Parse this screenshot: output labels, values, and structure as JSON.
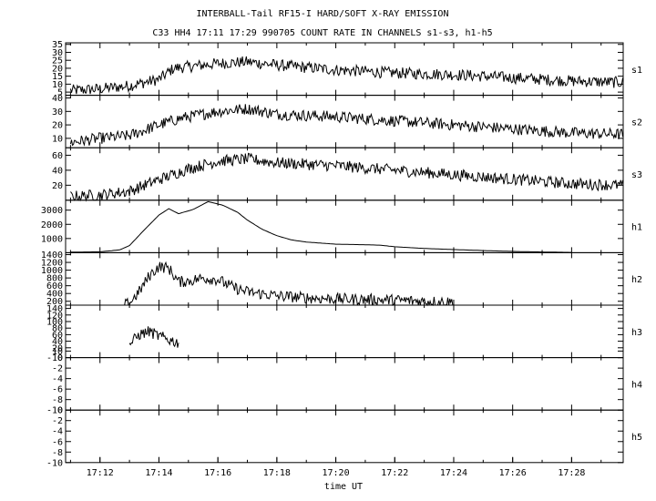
{
  "title": "INTERBALL-Tail RF15-I HARD/SOFT X-RAY EMISSION",
  "subtitle": "C33 HH4 17:11 17:29 990705  COUNT RATE IN CHANNELS s1-s3, h1-h5",
  "chart_data": {
    "type": "line",
    "title": "INTERBALL-Tail RF15-I HARD/SOFT X-RAY EMISSION",
    "subtitle": "C33 HH4 17:11 17:29 990705  COUNT RATE IN CHANNELS s1-s3, h1-h5",
    "xlabel": "time UT",
    "x_ticks": [
      "17:12",
      "17:14",
      "17:16",
      "17:18",
      "17:20",
      "17:22",
      "17:24",
      "17:26",
      "17:28"
    ],
    "xlim": [
      "17:10:50",
      "17:29:45"
    ],
    "grid": false,
    "legend": "none",
    "panels": [
      {
        "name": "s1",
        "ylim": [
          3,
          36
        ],
        "yticks": [
          5,
          10,
          15,
          20,
          25,
          30,
          35
        ],
        "noisy": true,
        "points": [
          [
            "17:11",
            6
          ],
          [
            "17:12",
            7
          ],
          [
            "17:13",
            9
          ],
          [
            "17:14",
            13
          ],
          [
            "17:14:30",
            20
          ],
          [
            "17:16",
            23
          ],
          [
            "17:17",
            24
          ],
          [
            "17:18",
            22
          ],
          [
            "17:20",
            19
          ],
          [
            "17:22",
            17
          ],
          [
            "17:24",
            16
          ],
          [
            "17:26",
            14
          ],
          [
            "17:28",
            12
          ],
          [
            "17:29:45",
            11
          ]
        ]
      },
      {
        "name": "s2",
        "ylim": [
          3,
          42
        ],
        "yticks": [
          10,
          20,
          30,
          40
        ],
        "noisy": true,
        "points": [
          [
            "17:11",
            7
          ],
          [
            "17:12",
            10
          ],
          [
            "17:13",
            12
          ],
          [
            "17:14",
            20
          ],
          [
            "17:14:45",
            25
          ],
          [
            "17:16",
            30
          ],
          [
            "17:17",
            32
          ],
          [
            "17:18",
            28
          ],
          [
            "17:20",
            26
          ],
          [
            "17:22",
            23
          ],
          [
            "17:24",
            20
          ],
          [
            "17:26",
            17
          ],
          [
            "17:28",
            14
          ],
          [
            "17:29:45",
            13
          ]
        ]
      },
      {
        "name": "s3",
        "ylim": [
          0,
          70
        ],
        "yticks": [
          20,
          40,
          60
        ],
        "noisy": true,
        "points": [
          [
            "17:11",
            5
          ],
          [
            "17:12",
            7
          ],
          [
            "17:13",
            12
          ],
          [
            "17:13:50",
            25
          ],
          [
            "17:15",
            42
          ],
          [
            "17:16",
            52
          ],
          [
            "17:17",
            55
          ],
          [
            "17:18",
            50
          ],
          [
            "17:20",
            46
          ],
          [
            "17:22",
            40
          ],
          [
            "17:24",
            34
          ],
          [
            "17:26",
            28
          ],
          [
            "17:28",
            22
          ],
          [
            "17:29:45",
            20
          ]
        ]
      },
      {
        "name": "h1",
        "ylim": [
          0,
          3700
        ],
        "yticks": [
          1000,
          2000,
          3000
        ],
        "noisy": false,
        "points": [
          [
            "17:11",
            40
          ],
          [
            "17:12",
            60
          ],
          [
            "17:12:40",
            200
          ],
          [
            "17:13",
            500
          ],
          [
            "17:13:30",
            1600
          ],
          [
            "17:14",
            2650
          ],
          [
            "17:14:20",
            3100
          ],
          [
            "17:14:40",
            2750
          ],
          [
            "17:15:10",
            3050
          ],
          [
            "17:15:40",
            3600
          ],
          [
            "17:16:10",
            3350
          ],
          [
            "17:16:40",
            2850
          ],
          [
            "17:17",
            2300
          ],
          [
            "17:17:30",
            1650
          ],
          [
            "17:18",
            1200
          ],
          [
            "17:18:30",
            900
          ],
          [
            "17:19",
            750
          ],
          [
            "17:20",
            600
          ],
          [
            "17:21",
            560
          ],
          [
            "17:21:30",
            530
          ],
          [
            "17:22",
            420
          ],
          [
            "17:23",
            300
          ],
          [
            "17:24",
            220
          ],
          [
            "17:25",
            150
          ],
          [
            "17:26",
            90
          ],
          [
            "17:27",
            50
          ],
          [
            "17:28",
            20
          ]
        ]
      },
      {
        "name": "h2",
        "ylim": [
          100,
          1450
        ],
        "yticks": [
          200,
          400,
          600,
          800,
          1000,
          1200,
          1400
        ],
        "noisy": true,
        "points": [
          [
            "17:12:50",
            100
          ],
          [
            "17:13",
            150
          ],
          [
            "17:13:20",
            450
          ],
          [
            "17:13:40",
            850
          ],
          [
            "17:14",
            1100
          ],
          [
            "17:14:20",
            1050
          ],
          [
            "17:14:40",
            700
          ],
          [
            "17:15",
            720
          ],
          [
            "17:15:30",
            800
          ],
          [
            "17:16",
            760
          ],
          [
            "17:16:30",
            560
          ],
          [
            "17:17",
            440
          ],
          [
            "17:18",
            340
          ],
          [
            "17:19",
            290
          ],
          [
            "17:20",
            260
          ],
          [
            "17:22",
            230
          ],
          [
            "17:23",
            200
          ],
          [
            "17:24",
            180
          ]
        ]
      },
      {
        "name": "h3",
        "ylim": [
          -10,
          150
        ],
        "yticks": [
          -10,
          10,
          20,
          40,
          60,
          80,
          100,
          120,
          140
        ],
        "noisy": true,
        "points": [
          [
            "17:13",
            30
          ],
          [
            "17:13:20",
            60
          ],
          [
            "17:13:40",
            70
          ],
          [
            "17:14",
            55
          ],
          [
            "17:14:20",
            45
          ],
          [
            "17:14:40",
            35
          ]
        ]
      },
      {
        "name": "h4",
        "ylim": [
          -10,
          0
        ],
        "yticks": [
          -10,
          -8,
          -6,
          -4,
          -2,
          0
        ],
        "noisy": false,
        "points": []
      },
      {
        "name": "h5",
        "ylim": [
          -10,
          0
        ],
        "yticks": [
          -10,
          -8,
          -6,
          -4,
          -2,
          0
        ],
        "noisy": false,
        "points": []
      }
    ]
  }
}
